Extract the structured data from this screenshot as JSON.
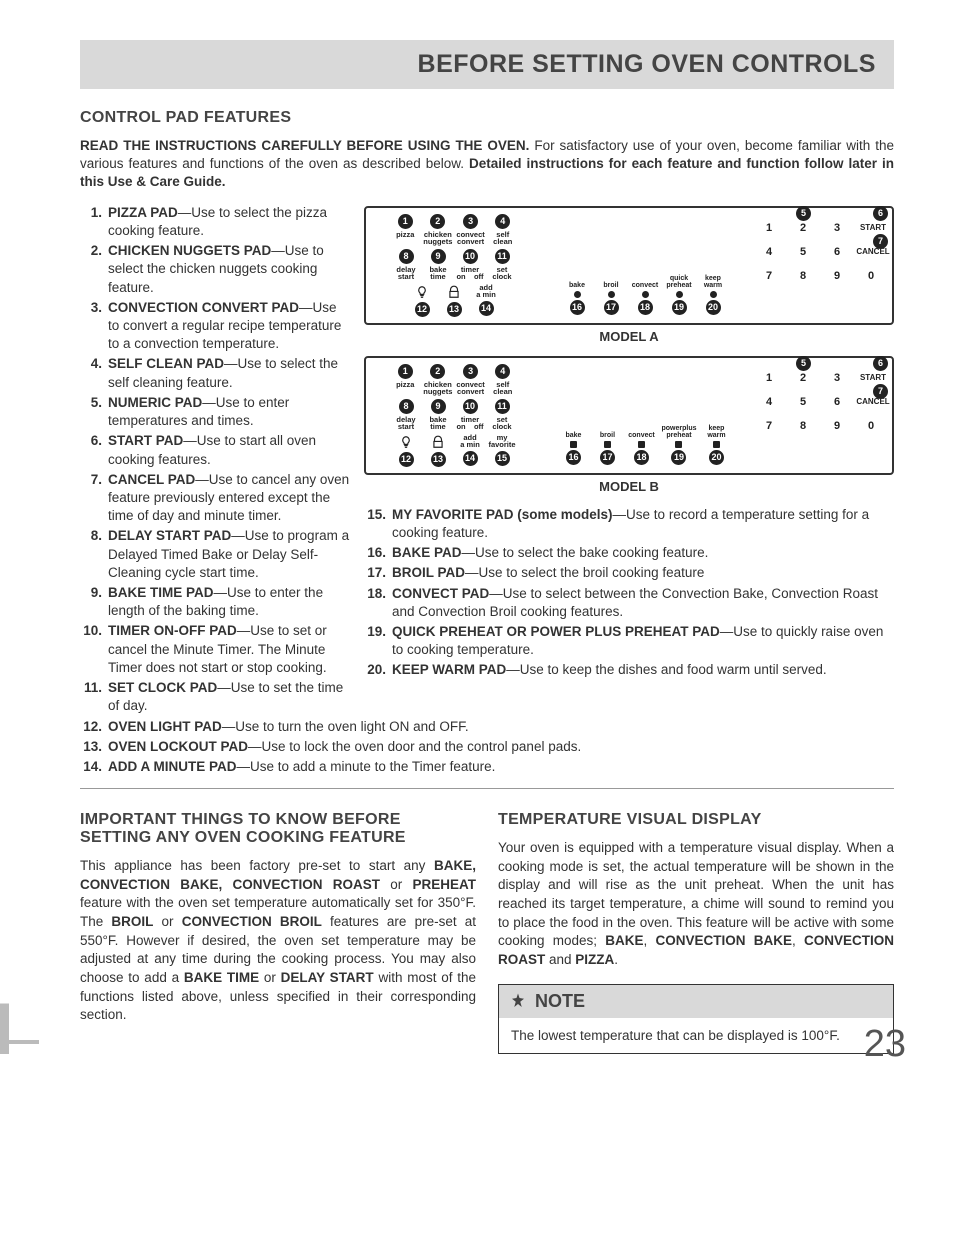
{
  "title": "BEFORE SETTING OVEN CONTROLS",
  "section1": "CONTROL PAD FEATURES",
  "intro_lead": "READ THE INSTRUCTIONS CAREFULLY BEFORE USING THE OVEN.",
  "intro_rest": " For satisfactory use of your oven, become familiar with the various features and functions of the oven as described below. ",
  "intro_tail": "Detailed instructions for each feature and function follow later in this Use & Care Guide.",
  "features_left": [
    {
      "n": "1.",
      "name": "PIZZA PAD",
      "desc": "—Use to select the pizza cooking feature."
    },
    {
      "n": "2.",
      "name": "CHICKEN NUGGETS PAD",
      "desc": "—Use to select the chicken nuggets cooking feature."
    },
    {
      "n": "3.",
      "name": "CONVECTION CONVERT PAD",
      "desc": "—Use to convert a regular recipe temperature to a convection temperature."
    },
    {
      "n": "4.",
      "name": "SELF CLEAN PAD",
      "desc": "—Use to select the self cleaning feature."
    },
    {
      "n": "5.",
      "name": "NUMERIC PAD",
      "desc": "—Use to enter temperatures and times."
    },
    {
      "n": "6.",
      "name": "START PAD",
      "desc": "—Use to start all oven cooking features."
    },
    {
      "n": "7.",
      "name": "CANCEL PAD",
      "desc": "—Use to cancel any oven feature previously entered except the time of day and minute timer."
    },
    {
      "n": "8.",
      "name": "DELAY START PAD",
      "desc": "—Use to program a Delayed Timed Bake or Delay Self-Cleaning cycle start time."
    },
    {
      "n": "9.",
      "name": "BAKE TIME PAD",
      "desc": "—Use to enter the length of the baking time."
    },
    {
      "n": "10.",
      "name": "TIMER ON-OFF PAD",
      "desc": "—Use to set or cancel the Minute Timer. The Minute Timer does not start or stop cooking."
    },
    {
      "n": "11.",
      "name": "SET CLOCK PAD",
      "desc": "—Use to set the time of day."
    },
    {
      "n": "12.",
      "name": "OVEN LIGHT PAD",
      "desc": "—Use to turn the oven light ON and OFF."
    },
    {
      "n": "13.",
      "name": "OVEN LOCKOUT PAD",
      "desc": "—Use to lock the oven door and the control panel pads."
    },
    {
      "n": "14.",
      "name": "ADD A MINUTE PAD",
      "desc": "—Use to add a minute to the Timer feature."
    }
  ],
  "features_right": [
    {
      "n": "15.",
      "name": "MY FAVORITE PAD (some models)",
      "desc": "—Use to record a temperature setting for a cooking feature."
    },
    {
      "n": "16.",
      "name": "BAKE PAD",
      "desc": "—Use to select the bake cooking feature."
    },
    {
      "n": "17.",
      "name": "BROIL PAD",
      "desc": "—Use to select the broil cooking feature"
    },
    {
      "n": "18.",
      "name": "CONVECT PAD",
      "desc": "—Use to select between the Convection Bake, Convection Roast and Convection Broil cooking features."
    },
    {
      "n": "19.",
      "name": "QUICK PREHEAT OR POWER PLUS PREHEAT PAD",
      "desc": "—Use to quickly raise oven to cooking temperature."
    },
    {
      "n": "20.",
      "name": "KEEP WARM PAD",
      "desc": "—Use to keep the dishes and food warm until served."
    }
  ],
  "panelA_caption": "MODEL A",
  "panelB_caption": "MODEL B",
  "pads_row1": [
    {
      "c": "1",
      "l": "pizza"
    },
    {
      "c": "2",
      "l": "chicken\nnuggets"
    },
    {
      "c": "3",
      "l": "convect\nconvert"
    },
    {
      "c": "4",
      "l": "self\nclean"
    }
  ],
  "pads_row2": [
    {
      "c": "8",
      "l": "delay\nstart"
    },
    {
      "c": "9",
      "l": "bake\ntime"
    },
    {
      "c": "10",
      "l": "timer\non    off"
    },
    {
      "c": "11",
      "l": "set\nclock"
    }
  ],
  "pads_row3A": [
    {
      "c": "12",
      "icon": "bulb"
    },
    {
      "c": "13",
      "icon": "lock"
    },
    {
      "c": "14",
      "l": "add\na min"
    }
  ],
  "pads_row3B": [
    {
      "c": "12",
      "icon": "bulb"
    },
    {
      "c": "13",
      "icon": "lock"
    },
    {
      "c": "14",
      "l": "add\na min"
    },
    {
      "c": "15",
      "l": "my\nfavorite"
    }
  ],
  "mid_padsA": [
    {
      "c": "16",
      "l": "bake"
    },
    {
      "c": "17",
      "l": "broil"
    },
    {
      "c": "18",
      "l": "convect"
    },
    {
      "c": "19",
      "l": "quick\npreheat"
    },
    {
      "c": "20",
      "l": "keep\nwarm"
    }
  ],
  "mid_padsB": [
    {
      "c": "16",
      "l": "bake"
    },
    {
      "c": "17",
      "l": "broil"
    },
    {
      "c": "18",
      "l": "convect"
    },
    {
      "c": "19",
      "l": "powerplus\npreheat"
    },
    {
      "c": "20",
      "l": "keep\nwarm"
    }
  ],
  "keypad": [
    "1",
    "2",
    "3",
    "START",
    "4",
    "5",
    "6",
    "CANCEL",
    "7",
    "8",
    "9",
    "0"
  ],
  "section2": "IMPORTANT THINGS TO KNOW BEFORE SETTING ANY OVEN COOKING FEATURE",
  "body2": "This appliance has been factory pre-set to start any <b>BAKE, CONVECTION BAKE, CONVECTION ROAST</b> or <b>PREHEAT</b> feature with the oven set temperature automatically set for 350°F. The <b>BROIL</b> or <b>CONVECTION BROIL</b> features are pre-set at 550°F. However if desired, the oven set temperature may be adjusted at any time during the cooking process. You may also choose to add a <b>BAKE TIME</b> or <b>DELAY START</b> with most of the functions listed above, unless specified in their corresponding section.",
  "section3": "TEMPERATURE VISUAL DISPLAY",
  "body3": "Your oven is equipped with a temperature visual display. When a cooking mode is set, the actual temperature will be shown in the display and will rise as the unit preheat. When the unit has reached its target temperature, a chime will sound to remind you to place the food in the oven. This feature will be active with some cooking modes; <b>BAKE</b>, <b>CONVECTION BAKE</b>, <b>CONVECTION ROAST</b> and <b>PIZZA</b>.",
  "note_head": "NOTE",
  "note_body": "The lowest temperature that can be displayed is 100°F.",
  "page": "23",
  "colors": {
    "band": "#d9d9d9",
    "text": "#333",
    "start_dot_A": "#d33",
    "start_dot_B_start": "#6a4",
    "start_dot_B_cancel": "#e80"
  }
}
